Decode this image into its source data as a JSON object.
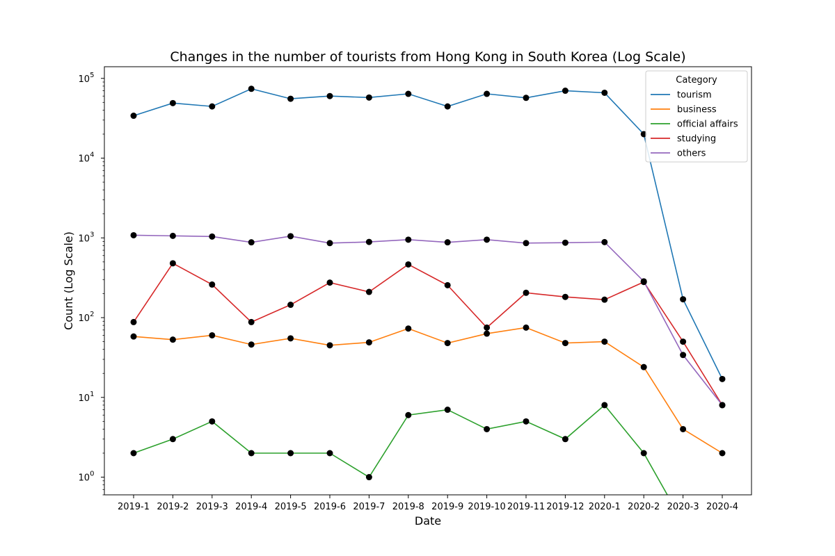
{
  "chart_data": {
    "type": "line",
    "title": "Changes in the number of tourists from Hong Kong in South Korea (Log Scale)",
    "xlabel": "Date",
    "ylabel": "Count (Log Scale)",
    "yscale": "log",
    "ylim": [
      0.6,
      140000
    ],
    "yticks": [
      {
        "value": 1,
        "base": "10",
        "exp": "0"
      },
      {
        "value": 10,
        "base": "10",
        "exp": "1"
      },
      {
        "value": 100,
        "base": "10",
        "exp": "2"
      },
      {
        "value": 1000,
        "base": "10",
        "exp": "3"
      },
      {
        "value": 10000,
        "base": "10",
        "exp": "4"
      },
      {
        "value": 100000,
        "base": "10",
        "exp": "5"
      }
    ],
    "grid": false,
    "legend": {
      "title": "Category",
      "placement": "top-right"
    },
    "categories": [
      "2019-1",
      "2019-2",
      "2019-3",
      "2019-4",
      "2019-5",
      "2019-6",
      "2019-7",
      "2019-8",
      "2019-9",
      "2019-10",
      "2019-11",
      "2019-12",
      "2020-1",
      "2020-2",
      "2020-3",
      "2020-4"
    ],
    "marker_color": "#000000",
    "series": [
      {
        "name": "tourism",
        "color": "#1f77b4",
        "values": [
          34000,
          49000,
          44500,
          74000,
          55500,
          60000,
          57500,
          64000,
          44500,
          64000,
          57000,
          70000,
          66000,
          20000,
          170,
          17
        ]
      },
      {
        "name": "business",
        "color": "#ff7f0e",
        "values": [
          58,
          53,
          60,
          46,
          55,
          45,
          49,
          73,
          48,
          63,
          75,
          48,
          50,
          24,
          4,
          2
        ]
      },
      {
        "name": "official affairs",
        "color": "#2ca02c",
        "values": [
          2,
          3,
          5,
          2,
          2,
          2,
          1,
          6,
          7,
          4,
          5,
          3,
          8,
          2,
          0,
          null
        ]
      },
      {
        "name": "studying",
        "color": "#d62728",
        "values": [
          88,
          480,
          260,
          88,
          145,
          275,
          210,
          465,
          255,
          75,
          205,
          182,
          168,
          280,
          50,
          8
        ]
      },
      {
        "name": "others",
        "color": "#9467bd",
        "values": [
          1080,
          1060,
          1040,
          880,
          1050,
          860,
          890,
          950,
          880,
          950,
          860,
          870,
          885,
          285,
          34,
          8
        ]
      }
    ]
  }
}
